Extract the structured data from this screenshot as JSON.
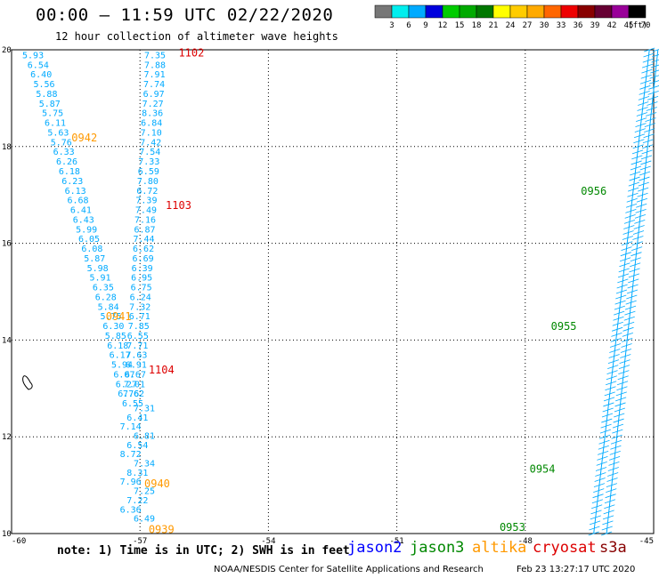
{
  "header": {
    "title": "00:00 – 11:59 UTC 02/22/2020",
    "subtitle": "12 hour collection of altimeter wave heights"
  },
  "footer": {
    "note": "note: 1) Time is in UTC; 2) SWH is in feet",
    "credit": "NOAA/NESDIS Center for Satellite Applications and Research",
    "timestamp": "Feb 23 13:27:17 UTC 2020"
  },
  "satellites": [
    {
      "name": "jason2",
      "color": "#0000ff"
    },
    {
      "name": "jason3",
      "color": "#008800"
    },
    {
      "name": "altika",
      "color": "#ff9900"
    },
    {
      "name": "cryosat",
      "color": "#dd0000"
    },
    {
      "name": "s3a",
      "color": "#880000"
    }
  ],
  "colorbar": {
    "unit": "(ft)",
    "ticks": [
      "3",
      "6",
      "9",
      "12",
      "15",
      "18",
      "21",
      "24",
      "27",
      "30",
      "33",
      "36",
      "39",
      "42",
      "45",
      "70"
    ],
    "colors": [
      "#777777",
      "#00eeee",
      "#00aaff",
      "#0000dd",
      "#00cc00",
      "#00aa00",
      "#007700",
      "#ffff00",
      "#ffcc00",
      "#ffaa00",
      "#ff6600",
      "#ee0000",
      "#880000",
      "#660033",
      "#990099",
      "#000000"
    ]
  },
  "chart_data": {
    "type": "scatter",
    "title": "00:00 – 11:59 UTC 02/22/2020",
    "subtitle": "12 hour collection of altimeter wave heights",
    "xlim": [
      -60,
      -45
    ],
    "ylim": [
      10,
      20
    ],
    "x_ticks": [
      "-60",
      "-57",
      "-54",
      "-51",
      "-48",
      "-45"
    ],
    "y_ticks": [
      "10",
      "12",
      "14",
      "16",
      "18",
      "20"
    ],
    "grid": true,
    "grid_style": "dotted",
    "value_color": "#00aaff",
    "satellite_label_colors": {
      "altika": "#ff9900",
      "cryosat": "#dd0000",
      "jason3": "#008800"
    },
    "swh_track": {
      "satellite": "altika",
      "x": [
        -59.75,
        -59.63,
        -59.56,
        -59.49,
        -59.43,
        -59.36,
        -59.29,
        -59.23,
        -59.16,
        -59.09,
        -59.03,
        -58.96,
        -58.9,
        -58.83,
        -58.76,
        -58.7,
        -58.63,
        -58.57,
        -58.5,
        -58.44,
        -58.37,
        -58.31,
        -58.24,
        -58.18,
        -58.11,
        -58.05,
        -57.99,
        -57.93,
        -57.87,
        -57.82,
        -57.77,
        -57.72,
        -57.67,
        -57.62,
        -57.57,
        -57.52
      ],
      "y": [
        19.9,
        19.7,
        19.5,
        19.3,
        19.1,
        18.9,
        18.7,
        18.5,
        18.3,
        18.1,
        17.9,
        17.7,
        17.5,
        17.3,
        17.1,
        16.9,
        16.7,
        16.5,
        16.3,
        16.1,
        15.9,
        15.7,
        15.5,
        15.3,
        15.1,
        14.9,
        14.7,
        14.5,
        14.3,
        14.1,
        13.9,
        13.7,
        13.5,
        13.3,
        13.1,
        12.9
      ],
      "values": [
        "5.93",
        "6.54",
        "6.40",
        "5.56",
        "5.88",
        "5.87",
        "5.75",
        "6.11",
        "5.63",
        "5.76",
        "6.33",
        "6.26",
        "6.18",
        "6.23",
        "6.13",
        "6.68",
        "6.41",
        "6.43",
        "5.99",
        "6.05",
        "6.08",
        "5.87",
        "5.98",
        "5.91",
        "6.35",
        "6.28",
        "5.84",
        "5.75",
        "6.30",
        "5.85",
        "6.18",
        "6.17",
        "5.94",
        "6.07",
        "6.27",
        "6.76"
      ]
    },
    "swh_track_2": {
      "satellite": "cryosat",
      "x": [
        -56.9,
        -56.9,
        -56.91,
        -56.92,
        -56.93,
        -56.95,
        -56.96,
        -56.98,
        -56.99,
        -57.0,
        -57.02,
        -57.04,
        -57.05,
        -57.07,
        -57.08,
        -57.1,
        -57.11,
        -57.13,
        -57.14,
        -57.16,
        -57.17,
        -57.18,
        -57.2,
        -57.21,
        -57.22,
        -57.24,
        -57.25,
        -57.26,
        -57.28,
        -57.3,
        -57.31,
        -57.33,
        -57.34,
        -57.36,
        -57.38,
        -57.4,
        -57.42
      ],
      "y": [
        19.9,
        19.7,
        19.5,
        19.3,
        19.1,
        18.9,
        18.7,
        18.5,
        18.3,
        18.1,
        17.9,
        17.7,
        17.5,
        17.3,
        17.1,
        16.9,
        16.7,
        16.5,
        16.3,
        16.1,
        15.9,
        15.7,
        15.5,
        15.3,
        15.1,
        14.9,
        14.7,
        14.5,
        14.3,
        14.1,
        13.9,
        13.7,
        13.5,
        13.3,
        13.1,
        12.9,
        12.7
      ],
      "values": [
        "7.35",
        "7.88",
        "7.91",
        "7.74",
        "6.97",
        "7.27",
        "8.36",
        "6.84",
        "7.10",
        "7.42",
        "7.54",
        "7.33",
        "6.59",
        "7.80",
        "6.72",
        "7.39",
        "7.49",
        "7.16",
        "6.87",
        "7.44",
        "6.62",
        "6.69",
        "6.39",
        "6.95",
        "6.75",
        "6.24",
        "7.32",
        "6.71",
        "7.85",
        "6.55",
        "7.71",
        "7.63",
        "6.91",
        "6.67",
        "7.01",
        "7.62",
        "6.55"
      ]
    },
    "lower_values": [
      "7.31",
      "6.41",
      "7.14",
      "6.81",
      "6.54",
      "8.72",
      "7.34",
      "8.31",
      "7.96",
      "7.25",
      "7.22",
      "6.36",
      "6.49"
    ],
    "time_labels": [
      {
        "text": "0942",
        "satellite": "altika",
        "x": -58.6,
        "y": 18.2
      },
      {
        "text": "0941",
        "satellite": "altika",
        "x": -57.8,
        "y": 14.5
      },
      {
        "text": "0940",
        "satellite": "altika",
        "x": -56.9,
        "y": 11.05
      },
      {
        "text": "0939",
        "satellite": "altika",
        "x": -56.8,
        "y": 10.1
      },
      {
        "text": "1102",
        "satellite": "cryosat",
        "x": -56.1,
        "y": 19.95
      },
      {
        "text": "1103",
        "satellite": "cryosat",
        "x": -56.4,
        "y": 16.8
      },
      {
        "text": "1104",
        "satellite": "cryosat",
        "x": -56.8,
        "y": 13.4
      },
      {
        "text": "0956",
        "satellite": "jason3",
        "x": -46.7,
        "y": 17.1
      },
      {
        "text": "0955",
        "satellite": "jason3",
        "x": -47.4,
        "y": 14.3
      },
      {
        "text": "0954",
        "satellite": "jason3",
        "x": -47.9,
        "y": 11.35
      },
      {
        "text": "0953",
        "satellite": "jason3",
        "x": -48.6,
        "y": 10.15
      }
    ],
    "jason_tracks": [
      {
        "x": [
          -46.4,
          -45.1
        ],
        "y": [
          10.0,
          20.0
        ]
      },
      {
        "x": [
          -46.1,
          -44.9
        ],
        "y": [
          10.0,
          20.0
        ]
      }
    ]
  }
}
